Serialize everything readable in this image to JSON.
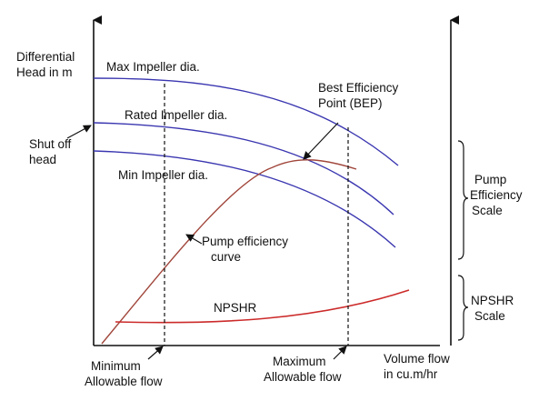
{
  "axes": {
    "y_label_lines": [
      "Differential",
      "Head in m"
    ],
    "x_label_lines": [
      "Volume flow",
      "in cu.m/hr"
    ]
  },
  "curves": {
    "max_impeller": "Max Impeller dia.",
    "rated_impeller": "Rated Impeller dia.",
    "min_impeller": "Min Impeller dia.",
    "pump_efficiency_lines": [
      "Pump efficiency",
      "curve"
    ],
    "npshr": "NPSHR"
  },
  "annotations": {
    "shutoff_lines": [
      "Shut off",
      "head"
    ],
    "bep_lines": [
      "Best Efficiency",
      "Point (BEP)"
    ],
    "min_flow_lines": [
      "Minimum",
      "Allowable flow"
    ],
    "max_flow_lines": [
      "Maximum",
      "Allowable flow"
    ]
  },
  "scales": {
    "efficiency_lines": [
      "Pump",
      "Efficiency",
      "Scale"
    ],
    "npshr_lines": [
      "NPSHR",
      "Scale"
    ]
  },
  "colors": {
    "head_curves": "#3a36b0",
    "efficiency_curve": "#a0453a",
    "npshr_curve": "#cc2a2a",
    "axis": "#111111"
  }
}
